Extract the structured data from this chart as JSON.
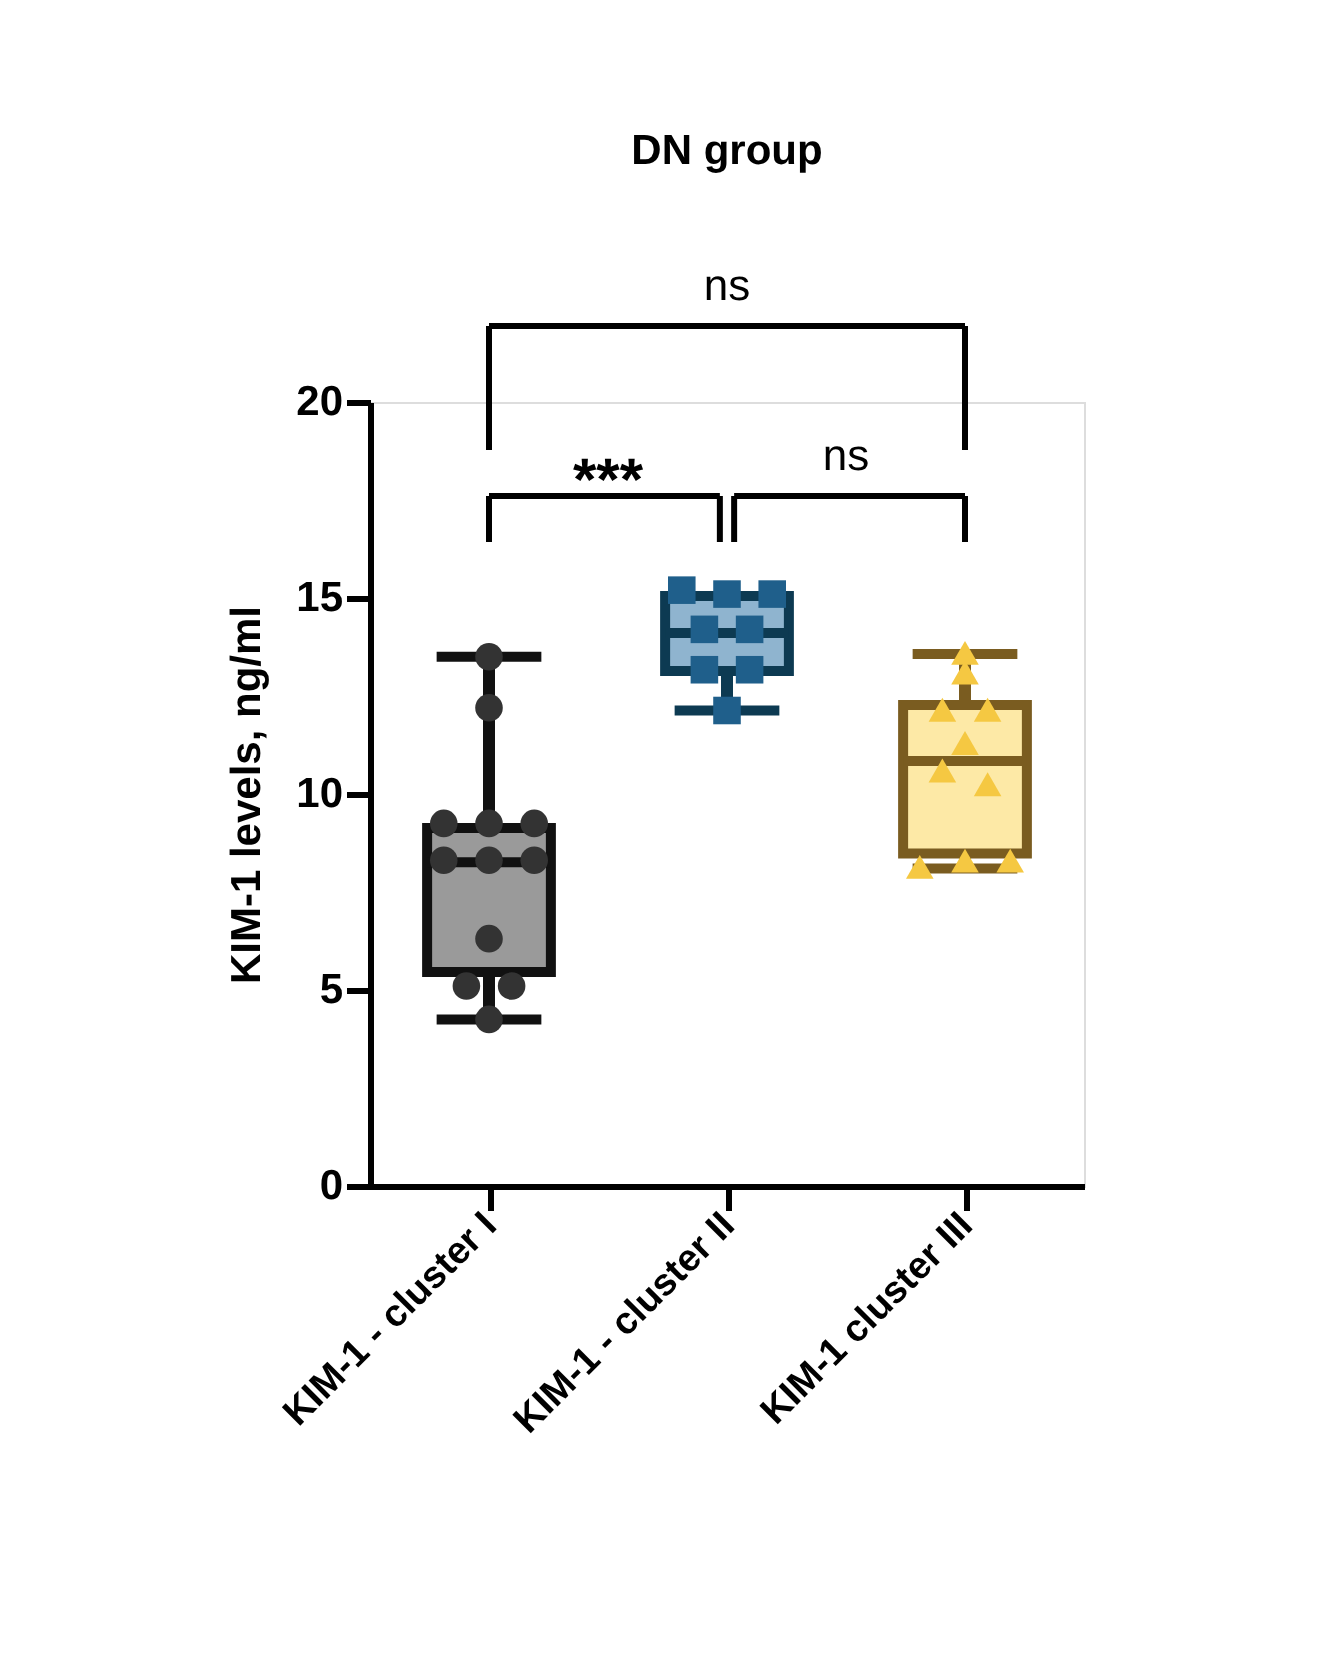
{
  "chart_data": {
    "type": "box",
    "title": "DN group",
    "ylabel": "KIM-1 levels, ng/ml",
    "categories": [
      "KIM-1 - cluster I",
      "KIM-1 - cluster II",
      "KIM-1 cluster III"
    ],
    "colors": [
      "#9a9a9a",
      "#8fb4cf",
      "#fde9a6"
    ],
    "boxes": [
      {
        "low": 4.25,
        "q1": 5.46,
        "median": 8.26,
        "q3": 9.13,
        "high": 13.5
      },
      {
        "low": 12.13,
        "q1": 13.14,
        "median": 14.11,
        "q3": 15.05,
        "high": 15.05
      },
      {
        "low": 8.1,
        "q1": 8.48,
        "median": 10.84,
        "q3": 12.27,
        "high": 13.57
      }
    ],
    "series": [
      {
        "type": "scatter",
        "marker": "circle",
        "color": "#333333",
        "x": [
          "KIM-1 - cluster I",
          "KIM-1 - cluster I",
          "KIM-1 - cluster I",
          "KIM-1 - cluster I",
          "KIM-1 - cluster I",
          "KIM-1 - cluster I",
          "KIM-1 - cluster I",
          "KIM-1 - cluster I",
          "KIM-1 - cluster I",
          "KIM-1 - cluster I",
          "KIM-1 - cluster I",
          "KIM-1 - cluster I"
        ],
        "values": [
          13.5,
          12.2,
          9.25,
          9.25,
          9.25,
          8.31,
          8.31,
          8.31,
          6.31,
          5.1,
          5.1,
          4.25
        ]
      },
      {
        "type": "scatter",
        "marker": "square",
        "color": "#1f5f8b",
        "x": [
          "KIM-1 - cluster II",
          "KIM-1 - cluster II",
          "KIM-1 - cluster II",
          "KIM-1 - cluster II",
          "KIM-1 - cluster II",
          "KIM-1 - cluster II",
          "KIM-1 - cluster II",
          "KIM-1 - cluster II"
        ],
        "values": [
          15.2,
          15.1,
          15.1,
          14.2,
          14.2,
          13.17,
          13.17,
          12.13
        ]
      },
      {
        "type": "scatter",
        "marker": "triangle",
        "color": "#f5c842",
        "x": [
          "KIM-1 cluster III",
          "KIM-1 cluster III",
          "KIM-1 cluster III",
          "KIM-1 cluster III",
          "KIM-1 cluster III",
          "KIM-1 cluster III",
          "KIM-1 cluster III",
          "KIM-1 cluster III",
          "KIM-1 cluster III",
          "KIM-1 cluster III"
        ],
        "values": [
          13.6,
          13.1,
          12.15,
          12.15,
          11.3,
          10.6,
          10.25,
          8.14,
          8.3,
          8.3
        ]
      }
    ],
    "annotations": [
      "***",
      "ns",
      "ns"
    ],
    "ylim": [
      0,
      20
    ],
    "yticks": [
      0,
      5,
      10,
      15,
      20
    ],
    "grid": false
  }
}
